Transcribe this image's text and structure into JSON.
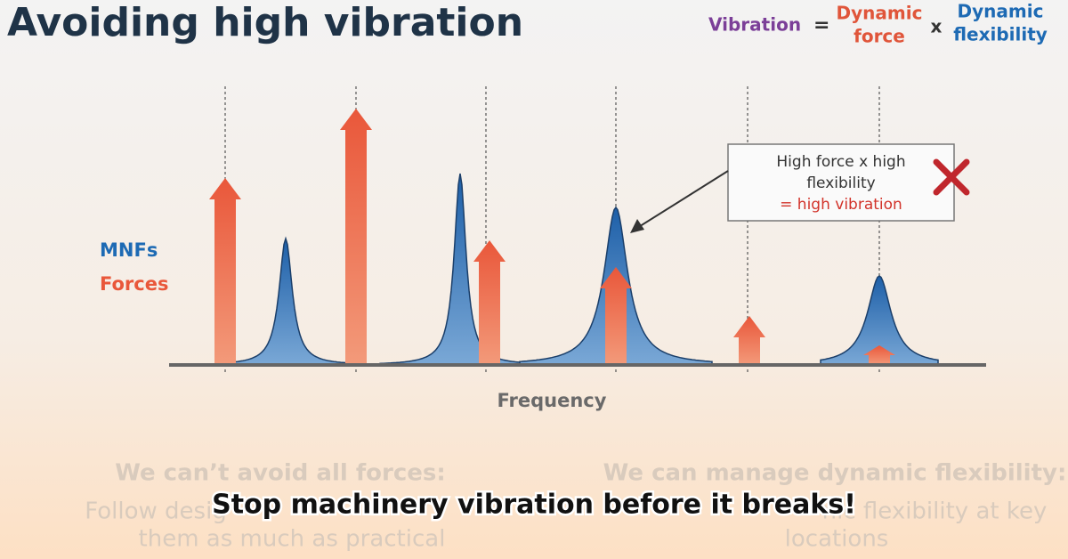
{
  "header": {
    "title": "Avoiding high vibration"
  },
  "equation": {
    "lhs": "Vibration",
    "equals": "=",
    "term1": [
      "Dynamic",
      "force"
    ],
    "times": "x",
    "term2": [
      "Dynamic",
      "flexibility"
    ]
  },
  "legend": {
    "mnfs": "MNFs",
    "forces": "Forces"
  },
  "callout": {
    "lines": [
      "High force x high",
      "flexibility",
      "= high vibration"
    ]
  },
  "axis_label": "Frequency",
  "notes": [
    {
      "heading": "We can’t avoid all forces:",
      "lines": [
        "Follow desig",
        "them as much as practical"
      ]
    },
    {
      "heading": "We can manage dynamic flexibility:",
      "lines": [
        "nic flexibility at key",
        "locations"
      ]
    }
  ],
  "caption": "Stop machinery vibration before it breaks!"
}
